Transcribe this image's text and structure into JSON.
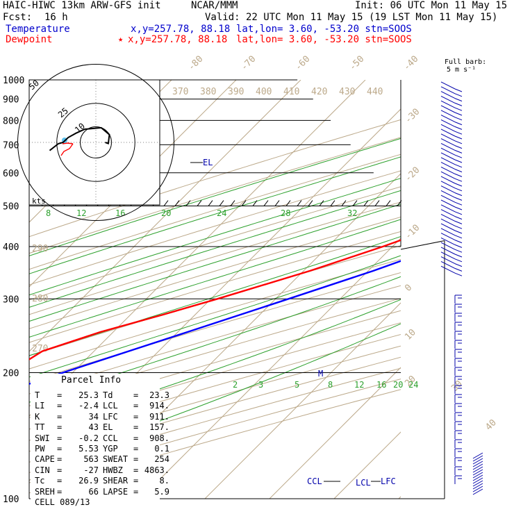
{
  "header": {
    "model": "HAIC-HIWC 13km ARW-GFS init",
    "center": "NCAR/MMM",
    "init": "Init: 06 UTC Mon 11 May 15",
    "fcst_label": "Fcst:",
    "fcst_value": "16 h",
    "valid": "Valid: 22 UTC Mon 11 May 15 (19 LST Mon 11 May 15)"
  },
  "legend": {
    "temperature_label": "Temperature",
    "temperature_xy": "x,y=257.78, 88.18",
    "temperature_loc": "lat,lon= 3.60, -53.20 stn=SOOS",
    "dewpoint_label": "Dewpoint",
    "dewpoint_star": "★",
    "dewpoint_xy": "x,y=257.78, 88.18",
    "dewpoint_loc": "lat,lon= 3.60, -53.20 stn=SOOS"
  },
  "barb_legend": {
    "line1": "Full barb:",
    "line2": "5 m s⁻¹"
  },
  "hodograph": {
    "ring_labels": [
      "10",
      "25",
      "50"
    ],
    "units": "kts"
  },
  "parcel": {
    "title": "Parcel Info",
    "rows": [
      [
        "T",
        "25.3",
        "Td",
        "23.3"
      ],
      [
        "LI",
        "-2.4",
        "LCL",
        "914."
      ],
      [
        "K",
        "34",
        "LFC",
        "911."
      ],
      [
        "TT",
        "43",
        "EL",
        "157."
      ],
      [
        "SWI",
        "-0.2",
        "CCL",
        "908."
      ],
      [
        "PW",
        "5.53",
        "YGP",
        "0.1"
      ],
      [
        "CAPE",
        "563",
        "SWEAT",
        "254"
      ],
      [
        "CIN",
        "-27",
        "HWBZ",
        "4863."
      ],
      [
        "Tc",
        "26.9",
        "SHEAR",
        "8."
      ],
      [
        "SREH",
        "66",
        "LAPSE",
        "5.9"
      ]
    ],
    "cell_label": "CELL",
    "cell_value": "089/13"
  },
  "colors": {
    "temperature": "#0000ff",
    "dewpoint": "#ff0000",
    "parcel_legend": "#0000cc",
    "isotherm": "#bca98a",
    "mixing_ratio": "#2ca02c",
    "isobar": "#000000"
  },
  "chart_data": {
    "type": "skew-T log-p sounding",
    "y_axis": {
      "scale": "log",
      "range": [
        1000,
        100
      ],
      "tick_labels": [
        "100",
        "200",
        "300",
        "400",
        "500",
        "600",
        "700",
        "800",
        "900",
        "1000"
      ]
    },
    "isotherm_labels": [
      "-80",
      "-70",
      "-60",
      "-50",
      "-40",
      "-30",
      "-20",
      "-10",
      "0",
      "10",
      "20",
      "30",
      "40"
    ],
    "theta_labels_top": [
      "370",
      "380",
      "390",
      "400",
      "410",
      "420",
      "430",
      "440"
    ],
    "theta_labels_left": [
      "290",
      "280",
      "270"
    ],
    "mixing_ratio_labels_upper": [
      "8",
      "12",
      "16",
      "20",
      "24",
      "28",
      "32"
    ],
    "mixing_ratio_labels_lower": [
      "2",
      "3",
      "5",
      "8",
      "12",
      "16",
      "20",
      "24"
    ],
    "markers": [
      {
        "text": "EL",
        "p": 157
      },
      {
        "text": "CCL",
        "p": 908
      },
      {
        "text": "LCL",
        "p": 914
      },
      {
        "text": "LFC",
        "p": 911
      },
      {
        "text": "M",
        "p": 500
      }
    ],
    "series": [
      {
        "name": "Temperature",
        "color": "#0000ff",
        "points": [
          [
            1000,
            25.3
          ],
          [
            975,
            23
          ],
          [
            950,
            21.2
          ],
          [
            925,
            19.4
          ],
          [
            900,
            18.2
          ],
          [
            850,
            16.5
          ],
          [
            800,
            14.8
          ],
          [
            750,
            12.5
          ],
          [
            700,
            9.8
          ],
          [
            650,
            7.2
          ],
          [
            600,
            4.3
          ],
          [
            550,
            1.2
          ],
          [
            500,
            -2.7
          ],
          [
            450,
            -7.2
          ],
          [
            400,
            -12.5
          ],
          [
            350,
            -19.2
          ],
          [
            300,
            -28
          ],
          [
            250,
            -38.5
          ],
          [
            200,
            -51.5
          ],
          [
            175,
            -59
          ],
          [
            157,
            -65
          ],
          [
            150,
            -67.5
          ],
          [
            125,
            -76
          ],
          [
            110,
            -82
          ],
          [
            100,
            -85
          ]
        ]
      },
      {
        "name": "Dewpoint",
        "color": "#ff0000",
        "points": [
          [
            1000,
            23.3
          ],
          [
            975,
            21.6
          ],
          [
            950,
            20.2
          ],
          [
            925,
            18.9
          ],
          [
            900,
            17.6
          ],
          [
            850,
            15.3
          ],
          [
            800,
            11.8
          ],
          [
            750,
            6.8
          ],
          [
            700,
            3.3
          ],
          [
            650,
            -0.5
          ],
          [
            600,
            -4.2
          ],
          [
            550,
            -7.8
          ],
          [
            500,
            -11.5
          ],
          [
            450,
            -15.5
          ],
          [
            400,
            -21.5
          ],
          [
            350,
            -29
          ],
          [
            300,
            -39
          ],
          [
            275,
            -45
          ],
          [
            250,
            -52
          ],
          [
            225,
            -58
          ],
          [
            200,
            -60
          ],
          [
            175,
            -68
          ],
          [
            150,
            -78
          ],
          [
            125,
            -88
          ],
          [
            110,
            -92
          ],
          [
            100,
            -91
          ]
        ]
      }
    ],
    "hodograph_points": [
      [
        270,
        6
      ],
      [
        275,
        8
      ],
      [
        240,
        10
      ],
      [
        200,
        10
      ],
      [
        140,
        11
      ],
      [
        115,
        14
      ],
      [
        100,
        18
      ],
      [
        90,
        21
      ],
      [
        88,
        24
      ],
      [
        80,
        30
      ]
    ],
    "wind_barbs": "left-pointing barbs stacked along the right edge"
  }
}
